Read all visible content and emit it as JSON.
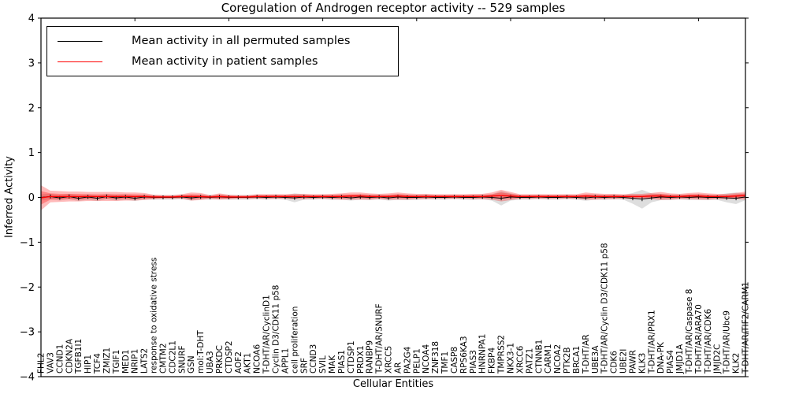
{
  "figure": {
    "title": "Coregulation of Androgen receptor activity -- 529 samples",
    "xlabel": "Cellular Entities",
    "ylabel": "Inferred Activity"
  },
  "chart_data": {
    "type": "line",
    "title": "Coregulation of Androgen receptor activity -- 529 samples",
    "xlabel": "Cellular Entities",
    "ylabel": "Inferred Activity",
    "ylim": [
      -4,
      4
    ],
    "yticks": [
      4,
      3,
      2,
      1,
      0,
      -1,
      -2,
      -3,
      -4
    ],
    "grid": false,
    "legend_position": "upper left",
    "categories": [
      "FHL2",
      "VAV3",
      "CCND1",
      "CDKN2A",
      "TGFB1I1",
      "HIP1",
      "TCF4",
      "ZMIZ1",
      "TGIF1",
      "MED1",
      "NRIP1",
      "LATS2",
      "response to oxidative stress",
      "CMTM2",
      "CDC2L1",
      "SNURF",
      "GSN",
      "mol:T-DHT",
      "UBA3",
      "PRKDC",
      "CTDSP2",
      "AOF2",
      "AKT1",
      "NCOA6",
      "T-DHT/AR/CyclinD1",
      "Cyclin D3/CDK11 p58",
      "APPL1",
      "cell proliferation",
      "SRF",
      "CCND3",
      "SVIL",
      "MAK",
      "PIAS1",
      "CTDSP1",
      "PRDX1",
      "RANBP9",
      "T-DHT/AR/SNURF",
      "XRCC5",
      "AR",
      "PA2G4",
      "PELP1",
      "NCOA4",
      "ZNF318",
      "TMF1",
      "CASP8",
      "RPS6KA3",
      "PIAS3",
      "HNRNPA1",
      "FKBP4",
      "TMPRSS2",
      "NKX3-1",
      "XRCC6",
      "PATZ1",
      "CTNNB1",
      "CARM1",
      "NCOA2",
      "PTK2B",
      "BRCA1",
      "T-DHT/AR",
      "UBE3A",
      "T-DHT/AR/Cyclin D3/CDK11 p58",
      "CDK6",
      "UBE2I",
      "PAWR",
      "KLK3",
      "T-DHT/AR/PRX1",
      "DNA-PK",
      "PIAS4",
      "JMJD1A",
      "T-DHT/AR/Caspase 8",
      "T-DHT/AR/ARA70",
      "T-DHT/AR/CDK6",
      "JMJD2C",
      "T-DHT/AR/Ubc9",
      "KLK2",
      "T-DHT/AR/TIF2/CARM1"
    ],
    "series": [
      {
        "name": "Mean activity in all permuted samples",
        "color": "#000000",
        "band_color": "#999999",
        "mean": [
          0.0,
          0.02,
          -0.01,
          0.02,
          -0.02,
          0.01,
          -0.02,
          0.02,
          -0.01,
          0.01,
          -0.02,
          0.01,
          0,
          0,
          0,
          0.01,
          -0.01,
          0.01,
          0,
          0.01,
          0,
          0,
          0,
          0.01,
          0,
          0.01,
          0,
          -0.01,
          0.01,
          0,
          0.01,
          0,
          0.01,
          -0.01,
          0.01,
          0,
          0.01,
          -0.01,
          0.01,
          0,
          0,
          0.01,
          0,
          0,
          0.01,
          0,
          0,
          0.01,
          0,
          -0.02,
          0.01,
          0,
          0,
          0.01,
          0,
          0,
          0.01,
          0,
          -0.01,
          0.01,
          0,
          0.01,
          0,
          -0.02,
          -0.04,
          -0.01,
          0.01,
          0,
          0.01,
          0,
          0.01,
          0,
          0,
          -0.01,
          -0.02,
          0.01
        ],
        "band_halfwidth": [
          0.07,
          0.06,
          0.06,
          0.06,
          0.06,
          0.06,
          0.06,
          0.06,
          0.06,
          0.06,
          0.06,
          0.055,
          0.05,
          0.05,
          0.05,
          0.05,
          0.06,
          0.055,
          0.05,
          0.055,
          0.05,
          0.05,
          0.05,
          0.05,
          0.05,
          0.05,
          0.05,
          0.1,
          0.06,
          0.05,
          0.05,
          0.055,
          0.06,
          0.06,
          0.06,
          0.06,
          0.055,
          0.06,
          0.065,
          0.06,
          0.055,
          0.055,
          0.05,
          0.05,
          0.05,
          0.05,
          0.055,
          0.055,
          0.07,
          0.16,
          0.08,
          0.05,
          0.05,
          0.05,
          0.05,
          0.05,
          0.05,
          0.05,
          0.065,
          0.06,
          0.055,
          0.055,
          0.05,
          0.12,
          0.21,
          0.1,
          0.07,
          0.06,
          0.055,
          0.06,
          0.065,
          0.06,
          0.055,
          0.1,
          0.13,
          0.07
        ]
      },
      {
        "name": "Mean activity in patient samples",
        "color": "#ff0000",
        "band_color": "#ff0000",
        "mean": [
          -0.01,
          0.02,
          0.02,
          0.02,
          0.02,
          0.02,
          0.02,
          0.02,
          0.02,
          0.02,
          0.02,
          0.02,
          0.01,
          0.01,
          0.01,
          0.02,
          0.02,
          0.02,
          0.01,
          0.02,
          0.01,
          0.01,
          0.01,
          0.02,
          0.02,
          0.02,
          0.02,
          0.02,
          0.02,
          0.02,
          0.02,
          0.02,
          0.02,
          0.03,
          0.03,
          0.02,
          0.02,
          0.02,
          0.03,
          0.02,
          0.02,
          0.02,
          0.02,
          0.02,
          0.02,
          0.02,
          0.02,
          0.02,
          0.03,
          0.04,
          0.03,
          0.02,
          0.02,
          0.02,
          0.02,
          0.02,
          0.02,
          0.02,
          0.03,
          0.02,
          0.02,
          0.02,
          0.02,
          0.02,
          0.02,
          0.03,
          0.03,
          0.02,
          0.02,
          0.03,
          0.03,
          0.02,
          0.02,
          0.02,
          0.03,
          0.04
        ],
        "band_outer_halfwidth": [
          0.28,
          0.13,
          0.12,
          0.11,
          0.11,
          0.1,
          0.1,
          0.1,
          0.1,
          0.09,
          0.09,
          0.08,
          0.05,
          0.04,
          0.04,
          0.05,
          0.09,
          0.08,
          0.04,
          0.07,
          0.05,
          0.04,
          0.04,
          0.05,
          0.05,
          0.05,
          0.05,
          0.06,
          0.06,
          0.05,
          0.05,
          0.06,
          0.07,
          0.08,
          0.08,
          0.07,
          0.06,
          0.07,
          0.08,
          0.07,
          0.06,
          0.06,
          0.05,
          0.05,
          0.05,
          0.05,
          0.06,
          0.06,
          0.08,
          0.13,
          0.09,
          0.05,
          0.05,
          0.05,
          0.05,
          0.05,
          0.05,
          0.05,
          0.08,
          0.07,
          0.06,
          0.06,
          0.05,
          0.06,
          0.06,
          0.07,
          0.09,
          0.07,
          0.06,
          0.07,
          0.08,
          0.07,
          0.06,
          0.06,
          0.07,
          0.09
        ],
        "band_inner_halfwidth": [
          0.15,
          0.07,
          0.06,
          0.06,
          0.06,
          0.05,
          0.05,
          0.05,
          0.05,
          0.05,
          0.05,
          0.04,
          0.03,
          0.02,
          0.02,
          0.03,
          0.05,
          0.04,
          0.02,
          0.04,
          0.03,
          0.02,
          0.02,
          0.03,
          0.03,
          0.03,
          0.03,
          0.03,
          0.03,
          0.03,
          0.03,
          0.03,
          0.04,
          0.04,
          0.04,
          0.04,
          0.03,
          0.04,
          0.04,
          0.04,
          0.03,
          0.03,
          0.03,
          0.03,
          0.03,
          0.03,
          0.03,
          0.03,
          0.04,
          0.07,
          0.05,
          0.03,
          0.03,
          0.03,
          0.03,
          0.03,
          0.03,
          0.03,
          0.04,
          0.04,
          0.03,
          0.03,
          0.03,
          0.03,
          0.03,
          0.04,
          0.05,
          0.04,
          0.03,
          0.04,
          0.04,
          0.04,
          0.03,
          0.03,
          0.04,
          0.05
        ]
      }
    ]
  },
  "legend": {
    "entries": [
      {
        "label": "Mean activity in all permuted samples",
        "color": "#000000"
      },
      {
        "label": "Mean activity in patient samples",
        "color": "#ff0000"
      }
    ]
  }
}
